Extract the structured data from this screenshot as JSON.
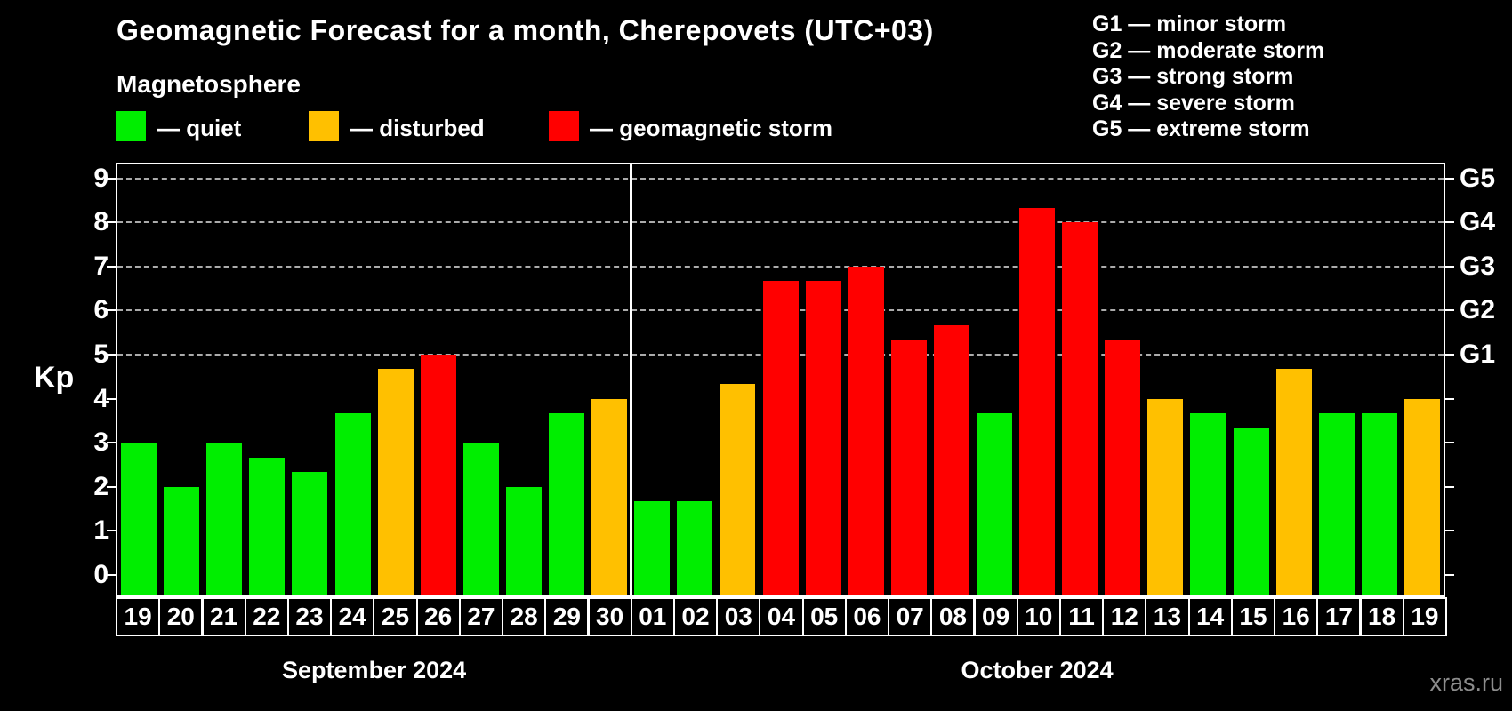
{
  "title": "Geomagnetic Forecast for a month, Cherepovets (UTC+03)",
  "subtitle": "Magnetosphere",
  "legend": {
    "quiet_label": "— quiet",
    "disturbed_label": "— disturbed",
    "storm_label": "— geomagnetic storm"
  },
  "g_legend": {
    "lines": [
      "G1 — minor storm",
      "G2 — moderate storm",
      "G3 — strong storm",
      "G4 — severe storm",
      "G5 — extreme storm"
    ]
  },
  "watermark": "xras.ru",
  "colors": {
    "quiet": "#00ee00",
    "disturbed": "#ffc000",
    "storm": "#ff0000",
    "grid": "#ababab",
    "frame": "#ffffff",
    "watermark": "#8c8c8c",
    "background": "#000000"
  },
  "chart_data": {
    "type": "bar",
    "title": "Geomagnetic Forecast for a month, Cherepovets (UTC+03)",
    "xlabel": "",
    "ylabel": "Kp",
    "ylim": [
      -0.45,
      9.4
    ],
    "y_ticks": [
      0,
      1,
      2,
      3,
      4,
      5,
      6,
      7,
      8,
      9
    ],
    "gridlines_at": [
      5,
      6,
      7,
      8,
      9
    ],
    "grid_style": "dashed horizontal, storm levels only",
    "legend_position": "top-left",
    "right_axis_labels": [
      {
        "kp": 5,
        "label": "G1"
      },
      {
        "kp": 6,
        "label": "G2"
      },
      {
        "kp": 7,
        "label": "G3"
      },
      {
        "kp": 8,
        "label": "G4"
      },
      {
        "kp": 9,
        "label": "G5"
      }
    ],
    "months": [
      {
        "label": "September 2024",
        "count": 12
      },
      {
        "label": "October 2024",
        "count": 19
      }
    ],
    "bars": [
      {
        "month": "September 2024",
        "day": "19",
        "kp": 3.0,
        "status": "quiet"
      },
      {
        "month": "September 2024",
        "day": "20",
        "kp": 2.0,
        "status": "quiet"
      },
      {
        "month": "September 2024",
        "day": "21",
        "kp": 3.0,
        "status": "quiet"
      },
      {
        "month": "September 2024",
        "day": "22",
        "kp": 2.67,
        "status": "quiet"
      },
      {
        "month": "September 2024",
        "day": "23",
        "kp": 2.33,
        "status": "quiet"
      },
      {
        "month": "September 2024",
        "day": "24",
        "kp": 3.67,
        "status": "quiet"
      },
      {
        "month": "September 2024",
        "day": "25",
        "kp": 4.67,
        "status": "disturbed"
      },
      {
        "month": "September 2024",
        "day": "26",
        "kp": 5.0,
        "status": "storm"
      },
      {
        "month": "September 2024",
        "day": "27",
        "kp": 3.0,
        "status": "quiet"
      },
      {
        "month": "September 2024",
        "day": "28",
        "kp": 2.0,
        "status": "quiet"
      },
      {
        "month": "September 2024",
        "day": "29",
        "kp": 3.67,
        "status": "quiet"
      },
      {
        "month": "September 2024",
        "day": "30",
        "kp": 4.0,
        "status": "disturbed"
      },
      {
        "month": "October 2024",
        "day": "01",
        "kp": 1.67,
        "status": "quiet"
      },
      {
        "month": "October 2024",
        "day": "02",
        "kp": 1.67,
        "status": "quiet"
      },
      {
        "month": "October 2024",
        "day": "03",
        "kp": 4.33,
        "status": "disturbed"
      },
      {
        "month": "October 2024",
        "day": "04",
        "kp": 6.67,
        "status": "storm"
      },
      {
        "month": "October 2024",
        "day": "05",
        "kp": 6.67,
        "status": "storm"
      },
      {
        "month": "October 2024",
        "day": "06",
        "kp": 7.0,
        "status": "storm"
      },
      {
        "month": "October 2024",
        "day": "07",
        "kp": 5.33,
        "status": "storm"
      },
      {
        "month": "October 2024",
        "day": "08",
        "kp": 5.67,
        "status": "storm"
      },
      {
        "month": "October 2024",
        "day": "09",
        "kp": 3.67,
        "status": "quiet"
      },
      {
        "month": "October 2024",
        "day": "10",
        "kp": 8.33,
        "status": "storm"
      },
      {
        "month": "October 2024",
        "day": "11",
        "kp": 8.0,
        "status": "storm"
      },
      {
        "month": "October 2024",
        "day": "12",
        "kp": 5.33,
        "status": "storm"
      },
      {
        "month": "October 2024",
        "day": "13",
        "kp": 4.0,
        "status": "disturbed"
      },
      {
        "month": "October 2024",
        "day": "14",
        "kp": 3.67,
        "status": "quiet"
      },
      {
        "month": "October 2024",
        "day": "15",
        "kp": 3.33,
        "status": "quiet"
      },
      {
        "month": "October 2024",
        "day": "16",
        "kp": 4.67,
        "status": "disturbed"
      },
      {
        "month": "October 2024",
        "day": "17",
        "kp": 3.67,
        "status": "quiet"
      },
      {
        "month": "October 2024",
        "day": "18",
        "kp": 3.67,
        "status": "quiet"
      },
      {
        "month": "October 2024",
        "day": "19",
        "kp": 4.0,
        "status": "disturbed"
      }
    ]
  }
}
